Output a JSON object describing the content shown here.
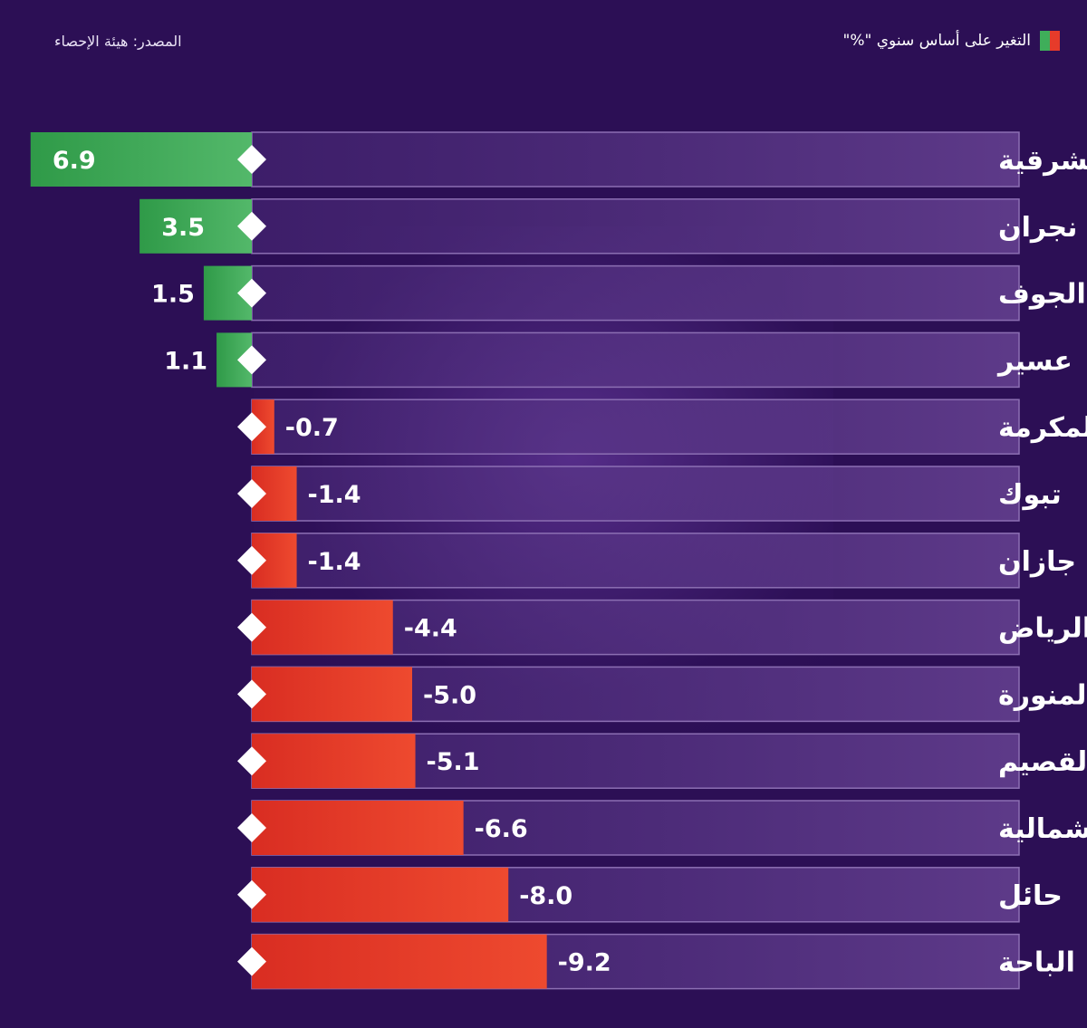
{
  "header": {
    "legend_label": "التغير على أساس سنوي \"%\"",
    "source": "المصدر: هيئة الإحصاء"
  },
  "colors": {
    "background": "#2c0f55",
    "positive": "#3fae5a",
    "negative": "#e63b2a"
  },
  "chart_data": {
    "type": "bar",
    "orientation": "horizontal",
    "categories": [
      "المنطقة الشرقية",
      "نجران",
      "الجوف",
      "عسير",
      "مكة المكرمة",
      "تبوك",
      "جازان",
      "الرياض",
      "المدينة المنورة",
      "القصيم",
      "الحدود الشمالية",
      "حائل",
      "الباحة"
    ],
    "values": [
      6.9,
      3.5,
      1.5,
      1.1,
      -0.7,
      -1.4,
      -1.4,
      -4.4,
      -5.0,
      -5.1,
      -6.6,
      -8.0,
      -9.2
    ],
    "value_labels": [
      "6.9",
      "3.5",
      "1.5",
      "1.1",
      "-0.7",
      "-1.4",
      "-1.4",
      "-4.4",
      "-5.0",
      "-5.1",
      "-6.6",
      "-8.0",
      "-9.2"
    ],
    "grid": false,
    "legend": "top-right"
  }
}
